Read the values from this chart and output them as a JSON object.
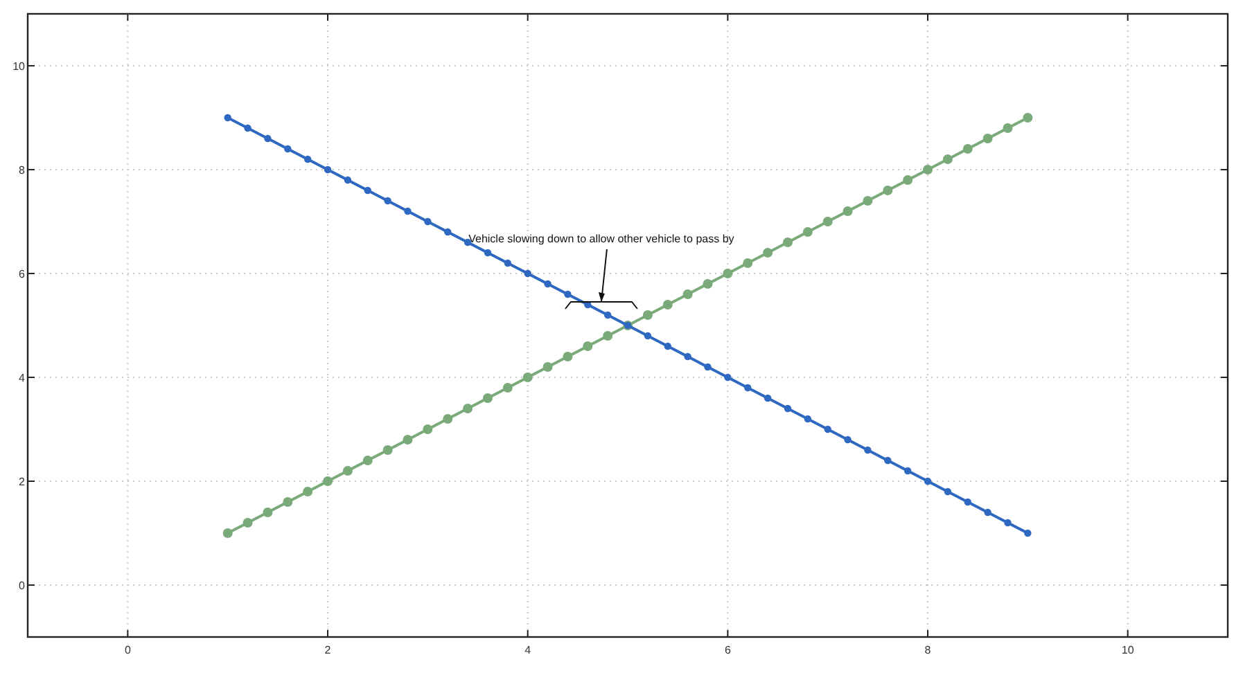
{
  "chart_data": {
    "type": "line",
    "xlim": [
      -1,
      11
    ],
    "ylim": [
      -1,
      11
    ],
    "xticks": [
      0,
      2,
      4,
      6,
      8,
      10
    ],
    "yticks": [
      0,
      2,
      4,
      6,
      8,
      10
    ],
    "grid": true,
    "marker": "circle",
    "line_style": "solid",
    "x": [
      1,
      1.2,
      1.4,
      1.6,
      1.8,
      2,
      2.2,
      2.4,
      2.6,
      2.8,
      3,
      3.2,
      3.4,
      3.6,
      3.8,
      4,
      4.2,
      4.4,
      4.6,
      4.8,
      5,
      5.2,
      5.4,
      5.6,
      5.8,
      6,
      6.2,
      6.4,
      6.6,
      6.8,
      7,
      7.2,
      7.4,
      7.6,
      7.8,
      8,
      8.2,
      8.4,
      8.6,
      8.8,
      9
    ],
    "series": [
      {
        "color": "#2f68c0",
        "values": [
          9,
          8.8,
          8.6,
          8.4,
          8.2,
          8,
          7.8,
          7.6,
          7.4,
          7.2,
          7,
          6.8,
          6.6,
          6.4,
          6.2,
          6,
          5.8,
          5.6,
          5.4,
          5.2,
          5,
          4.8,
          4.6,
          4.4,
          4.2,
          4,
          3.8,
          3.6,
          3.4,
          3.2,
          3,
          2.8,
          2.6,
          2.4,
          2.2,
          2,
          1.8,
          1.6,
          1.4,
          1.2,
          1
        ]
      },
      {
        "color": "#7aaa7a",
        "values": [
          1,
          1.2,
          1.4,
          1.6,
          1.8,
          2,
          2.2,
          2.4,
          2.6,
          2.8,
          3,
          3.2,
          3.4,
          3.6,
          3.8,
          4,
          4.2,
          4.4,
          4.6,
          4.8,
          5,
          5.2,
          5.4,
          5.6,
          5.8,
          6,
          6.2,
          6.4,
          6.6,
          6.8,
          7,
          7.2,
          7.4,
          7.6,
          7.8,
          8,
          8.2,
          8.4,
          8.6,
          8.8,
          9
        ]
      }
    ],
    "annotations": [
      "Vehicle slowing down to allow other vehicle to pass by"
    ]
  }
}
